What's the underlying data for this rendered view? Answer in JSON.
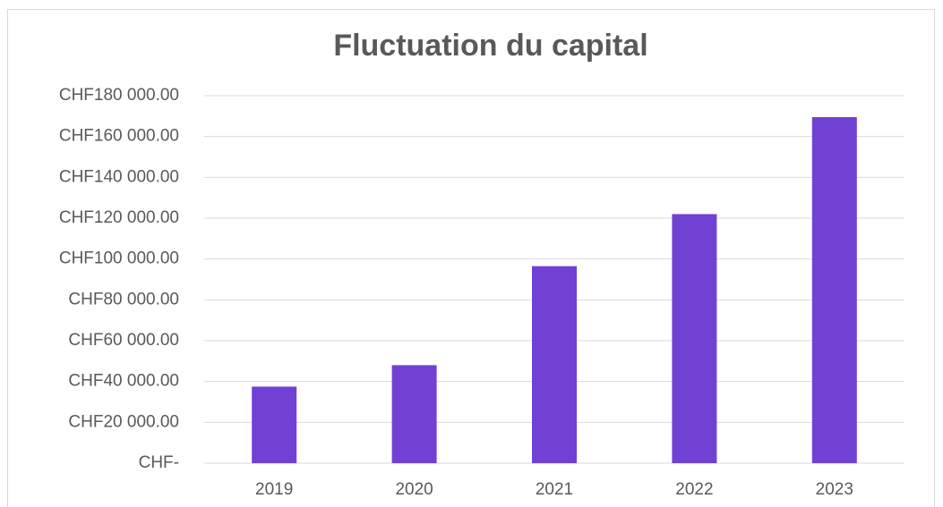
{
  "chart_data": {
    "type": "bar",
    "title": "Fluctuation du capital",
    "categories": [
      "2019",
      "2020",
      "2021",
      "2022",
      "2023"
    ],
    "values": [
      37500,
      48000,
      96500,
      122000,
      169500
    ],
    "color": "#7041d3",
    "ylim": [
      0,
      180000
    ],
    "yticks": [
      {
        "value": 0,
        "label": "CHF-"
      },
      {
        "value": 20000,
        "label": "CHF20 000.00"
      },
      {
        "value": 40000,
        "label": "CHF40 000.00"
      },
      {
        "value": 60000,
        "label": "CHF60 000.00"
      },
      {
        "value": 80000,
        "label": "CHF80 000.00"
      },
      {
        "value": 100000,
        "label": "CHF100 000.00"
      },
      {
        "value": 120000,
        "label": "CHF120 000.00"
      },
      {
        "value": 140000,
        "label": "CHF140 000.00"
      },
      {
        "value": 160000,
        "label": "CHF160 000.00"
      },
      {
        "value": 180000,
        "label": "CHF180 000.00"
      }
    ],
    "grid": true
  }
}
